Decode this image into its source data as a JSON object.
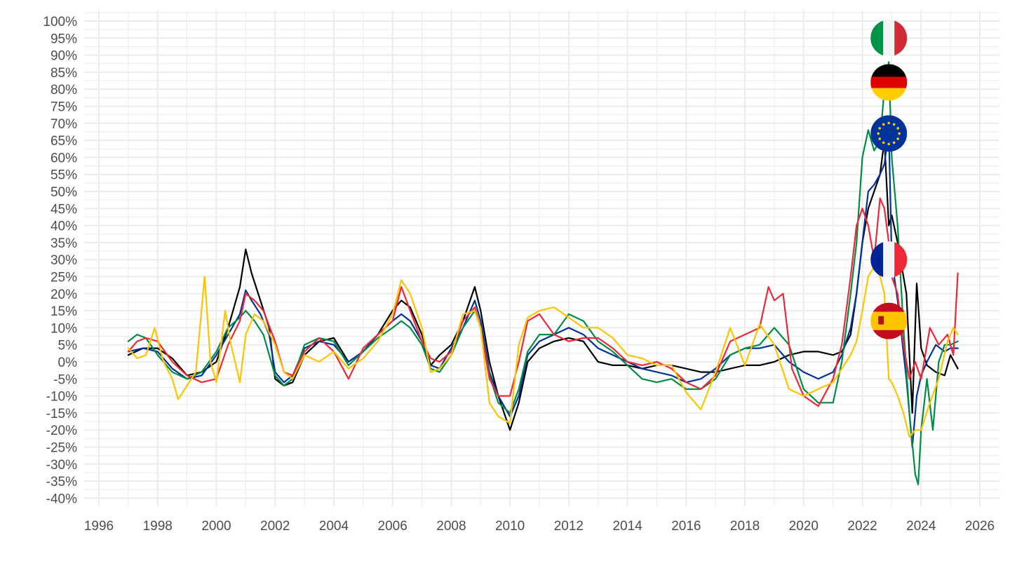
{
  "chart_data": {
    "type": "line",
    "title": "",
    "xlabel": "",
    "ylabel": "",
    "xlim": [
      1996,
      2026
    ],
    "ylim": [
      -40,
      100
    ],
    "x_ticks": [
      "1996",
      "1998",
      "2000",
      "2002",
      "2004",
      "2006",
      "2008",
      "2010",
      "2012",
      "2014",
      "2016",
      "2018",
      "2020",
      "2022",
      "2024",
      "2026"
    ],
    "y_ticks": [
      "-40%",
      "-35%",
      "-30%",
      "-25%",
      "-20%",
      "-15%",
      "-10%",
      "-5%",
      "0%",
      "5%",
      "10%",
      "15%",
      "20%",
      "25%",
      "30%",
      "35%",
      "40%",
      "45%",
      "50%",
      "55%",
      "60%",
      "65%",
      "70%",
      "75%",
      "80%",
      "85%",
      "90%",
      "95%",
      "100%"
    ],
    "grid": true,
    "legend": "flag icons at series peaks (no text legend)",
    "series": [
      {
        "color": "#000000",
        "flag": "eu-flag-icon",
        "x": [
          1997.0,
          1997.5,
          1998.0,
          1998.5,
          1999.0,
          1999.5,
          2000.0,
          2000.4,
          2000.8,
          2001.0,
          2001.2,
          2001.5,
          2001.8,
          2002.0,
          2002.3,
          2002.6,
          2003.0,
          2003.5,
          2004.0,
          2004.5,
          2005.0,
          2005.5,
          2006.0,
          2006.3,
          2006.6,
          2007.0,
          2007.3,
          2007.6,
          2008.0,
          2008.4,
          2008.8,
          2009.0,
          2009.3,
          2009.6,
          2010.0,
          2010.3,
          2010.6,
          2011.0,
          2011.5,
          2012.0,
          2012.5,
          2013.0,
          2013.5,
          2014.0,
          2014.5,
          2015.0,
          2015.5,
          2016.0,
          2016.5,
          2017.0,
          2017.5,
          2018.0,
          2018.5,
          2019.0,
          2019.5,
          2020.0,
          2020.5,
          2021.0,
          2021.3,
          2021.6,
          2021.8,
          2022.0,
          2022.2,
          2022.4,
          2022.6,
          2022.75,
          2022.9,
          2023.0,
          2023.2,
          2023.5,
          2023.7,
          2023.85,
          2024.0,
          2024.2,
          2024.5,
          2024.8,
          2025.0,
          2025.25
        ],
        "y": [
          2,
          4,
          4,
          1,
          -4,
          -3,
          0,
          10,
          22,
          33,
          26,
          18,
          10,
          -5,
          -7,
          -6,
          2,
          6,
          7,
          0,
          3,
          8,
          15,
          18,
          16,
          8,
          -1,
          2,
          5,
          12,
          22,
          15,
          0,
          -10,
          -20,
          -12,
          0,
          4,
          6,
          7,
          6,
          0,
          -1,
          -1,
          -2,
          -1,
          -1,
          -2,
          -3,
          -3,
          -2,
          -1,
          -1,
          0,
          2,
          3,
          3,
          2,
          3,
          8,
          20,
          35,
          45,
          50,
          55,
          65,
          40,
          43,
          35,
          20,
          -15,
          23,
          4,
          -1,
          -3,
          -4,
          2,
          -2
        ]
      },
      {
        "color": "#003399",
        "flag": "germany-flag-icon",
        "x": [
          1997.0,
          1997.5,
          1998.0,
          1998.5,
          1999.0,
          1999.5,
          2000.0,
          2000.4,
          2000.8,
          2001.0,
          2001.2,
          2001.5,
          2001.8,
          2002.0,
          2002.3,
          2002.6,
          2003.0,
          2003.5,
          2004.0,
          2004.5,
          2005.0,
          2005.5,
          2006.0,
          2006.3,
          2006.6,
          2007.0,
          2007.3,
          2007.6,
          2008.0,
          2008.4,
          2008.8,
          2009.0,
          2009.3,
          2009.6,
          2010.0,
          2010.3,
          2010.6,
          2011.0,
          2011.5,
          2012.0,
          2012.5,
          2013.0,
          2013.5,
          2014.0,
          2014.5,
          2015.0,
          2015.5,
          2016.0,
          2016.5,
          2017.0,
          2017.5,
          2018.0,
          2018.5,
          2019.0,
          2019.5,
          2020.0,
          2020.5,
          2021.0,
          2021.3,
          2021.6,
          2021.8,
          2022.0,
          2022.2,
          2022.4,
          2022.6,
          2022.75,
          2022.9,
          2023.0,
          2023.2,
          2023.5,
          2023.7,
          2023.85,
          2024.0,
          2024.2,
          2024.5,
          2024.8,
          2025.0,
          2025.25
        ],
        "y": [
          3,
          4,
          3,
          -2,
          -5,
          -4,
          2,
          8,
          14,
          21,
          18,
          14,
          8,
          -3,
          -6,
          -4,
          4,
          6,
          5,
          0,
          3,
          8,
          12,
          14,
          12,
          6,
          -1,
          -2,
          4,
          10,
          18,
          12,
          -3,
          -10,
          -16,
          -10,
          2,
          6,
          8,
          10,
          8,
          4,
          2,
          0,
          -2,
          -3,
          -4,
          -6,
          -5,
          -2,
          2,
          4,
          4,
          5,
          0,
          -3,
          -5,
          -3,
          2,
          10,
          20,
          35,
          50,
          52,
          55,
          58,
          68,
          30,
          18,
          -5,
          -25,
          -10,
          -4,
          0,
          5,
          3,
          4,
          4
        ]
      },
      {
        "color": "#008c45",
        "flag": "italy-flag-icon",
        "x": [
          1997.0,
          1997.3,
          1997.6,
          1998.0,
          1998.5,
          1999.0,
          1999.5,
          2000.0,
          2000.4,
          2000.8,
          2001.0,
          2001.3,
          2001.6,
          2002.0,
          2002.3,
          2002.6,
          2003.0,
          2003.5,
          2004.0,
          2004.5,
          2005.0,
          2005.5,
          2006.0,
          2006.3,
          2006.6,
          2007.0,
          2007.3,
          2007.6,
          2008.0,
          2008.4,
          2008.8,
          2009.0,
          2009.3,
          2009.6,
          2010.0,
          2010.3,
          2010.6,
          2011.0,
          2011.5,
          2012.0,
          2012.5,
          2013.0,
          2013.5,
          2014.0,
          2014.5,
          2015.0,
          2015.5,
          2016.0,
          2016.5,
          2017.0,
          2017.5,
          2018.0,
          2018.5,
          2019.0,
          2019.5,
          2020.0,
          2020.5,
          2021.0,
          2021.3,
          2021.6,
          2021.8,
          2022.0,
          2022.2,
          2022.4,
          2022.6,
          2022.75,
          2022.9,
          2023.0,
          2023.2,
          2023.4,
          2023.6,
          2023.8,
          2023.9,
          2024.0,
          2024.2,
          2024.4,
          2024.6,
          2024.8,
          2025.0,
          2025.25
        ],
        "y": [
          6,
          8,
          7,
          2,
          -3,
          -5,
          -3,
          3,
          10,
          13,
          15,
          12,
          8,
          -4,
          -7,
          -5,
          5,
          7,
          6,
          -1,
          3,
          7,
          10,
          12,
          10,
          5,
          -2,
          -3,
          2,
          10,
          15,
          10,
          -4,
          -12,
          -15,
          -8,
          3,
          8,
          8,
          14,
          12,
          6,
          3,
          -1,
          -5,
          -6,
          -5,
          -8,
          -8,
          -5,
          2,
          4,
          5,
          10,
          5,
          -8,
          -12,
          -12,
          0,
          20,
          35,
          60,
          68,
          62,
          65,
          80,
          88,
          60,
          40,
          10,
          -15,
          -33,
          -36,
          -20,
          -5,
          -20,
          0,
          5,
          5,
          6
        ]
      },
      {
        "color": "#ed2939",
        "flag": "france-flag-icon",
        "x": [
          1997.0,
          1997.3,
          1997.6,
          1998.0,
          1998.5,
          1999.0,
          1999.5,
          2000.0,
          2000.4,
          2000.8,
          2001.0,
          2001.3,
          2001.6,
          2002.0,
          2002.3,
          2002.6,
          2003.0,
          2003.5,
          2004.0,
          2004.5,
          2005.0,
          2005.5,
          2006.0,
          2006.3,
          2006.6,
          2007.0,
          2007.3,
          2007.6,
          2008.0,
          2008.4,
          2008.8,
          2009.0,
          2009.3,
          2009.6,
          2010.0,
          2010.3,
          2010.6,
          2011.0,
          2011.5,
          2012.0,
          2012.5,
          2013.0,
          2013.5,
          2014.0,
          2014.5,
          2015.0,
          2015.5,
          2016.0,
          2016.5,
          2017.0,
          2017.5,
          2018.0,
          2018.5,
          2018.8,
          2019.0,
          2019.3,
          2019.6,
          2020.0,
          2020.5,
          2021.0,
          2021.3,
          2021.6,
          2021.8,
          2022.0,
          2022.2,
          2022.4,
          2022.6,
          2022.75,
          2022.9,
          2023.0,
          2023.2,
          2023.4,
          2023.6,
          2023.8,
          2024.0,
          2024.3,
          2024.6,
          2024.9,
          2025.1,
          2025.25
        ],
        "y": [
          3,
          6,
          7,
          6,
          0,
          -4,
          -6,
          -5,
          5,
          12,
          20,
          18,
          15,
          6,
          -3,
          -4,
          3,
          7,
          3,
          -5,
          4,
          8,
          12,
          22,
          15,
          6,
          1,
          0,
          3,
          12,
          16,
          10,
          -5,
          -10,
          -10,
          0,
          12,
          14,
          8,
          6,
          7,
          7,
          4,
          0,
          -1,
          0,
          -2,
          -6,
          -8,
          -4,
          6,
          8,
          10,
          22,
          18,
          20,
          -2,
          -10,
          -13,
          -5,
          5,
          25,
          40,
          45,
          40,
          30,
          48,
          45,
          35,
          25,
          20,
          5,
          -5,
          0,
          -5,
          10,
          5,
          8,
          2,
          26
        ]
      },
      {
        "color": "#ffc400",
        "flag": "spain-flag-icon",
        "x": [
          1997.0,
          1997.3,
          1997.6,
          1997.9,
          1998.2,
          1998.5,
          1998.7,
          1999.0,
          1999.3,
          1999.6,
          1999.8,
          2000.0,
          2000.3,
          2000.5,
          2000.8,
          2001.0,
          2001.3,
          2001.6,
          2002.0,
          2002.3,
          2002.6,
          2003.0,
          2003.5,
          2004.0,
          2004.5,
          2005.0,
          2005.5,
          2006.0,
          2006.3,
          2006.6,
          2007.0,
          2007.3,
          2007.6,
          2008.0,
          2008.4,
          2008.8,
          2009.0,
          2009.3,
          2009.6,
          2010.0,
          2010.3,
          2010.6,
          2011.0,
          2011.5,
          2012.0,
          2012.5,
          2013.0,
          2013.5,
          2014.0,
          2014.5,
          2015.0,
          2015.5,
          2016.0,
          2016.5,
          2017.0,
          2017.5,
          2018.0,
          2018.5,
          2019.0,
          2019.5,
          2020.0,
          2020.5,
          2021.0,
          2021.3,
          2021.6,
          2021.8,
          2022.0,
          2022.2,
          2022.4,
          2022.6,
          2022.75,
          2022.9,
          2023.0,
          2023.2,
          2023.4,
          2023.6,
          2023.8,
          2024.0,
          2024.3,
          2024.6,
          2024.9,
          2025.1,
          2025.25
        ],
        "y": [
          4,
          1,
          2,
          10,
          0,
          -5,
          -11,
          -7,
          -3,
          25,
          0,
          -6,
          15,
          5,
          -6,
          8,
          14,
          12,
          5,
          -3,
          -5,
          2,
          0,
          3,
          -2,
          1,
          6,
          14,
          24,
          20,
          10,
          -3,
          -2,
          2,
          14,
          15,
          10,
          -12,
          -16,
          -18,
          5,
          13,
          15,
          16,
          13,
          10,
          10,
          7,
          2,
          1,
          -1,
          -1,
          -9,
          -14,
          -3,
          10,
          -1,
          11,
          5,
          -8,
          -10,
          -8,
          -6,
          -2,
          2,
          6,
          15,
          25,
          28,
          25,
          20,
          -5,
          -6,
          -10,
          -15,
          -22,
          -20,
          -20,
          -12,
          -5,
          6,
          10,
          8
        ]
      }
    ]
  }
}
